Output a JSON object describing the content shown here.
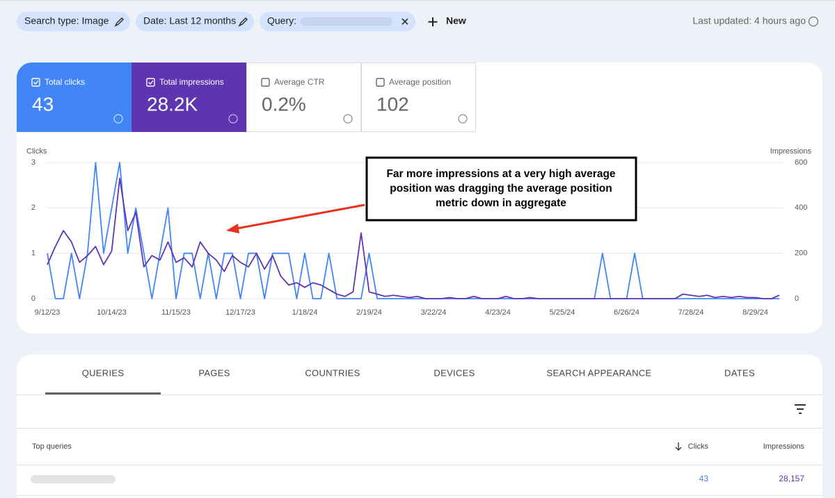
{
  "filters": {
    "chips": [
      "Search type: Image",
      "Date: Last 12 months",
      "Query:"
    ],
    "new_button": "New",
    "last_updated": "Last updated: 4 hours ago"
  },
  "metrics": [
    {
      "label": "Total clicks",
      "value": "43"
    },
    {
      "label": "Total impressions",
      "value": "28.2K"
    },
    {
      "label": "Average CTR",
      "value": "0.2%"
    },
    {
      "label": "Average position",
      "value": "102"
    }
  ],
  "chart_data": {
    "type": "line",
    "annotation": [
      "Far more impressions at a very high average",
      "position was dragging the average position",
      "metric down in aggregate"
    ],
    "x": [
      "9/12/23",
      "9/16/23",
      "9/20/23",
      "9/24/23",
      "9/28/23",
      "10/2/23",
      "10/6/23",
      "10/10/23",
      "10/14/23",
      "10/18/23",
      "10/22/23",
      "10/26/23",
      "10/30/23",
      "11/3/23",
      "11/7/23",
      "11/11/23",
      "11/15/23",
      "11/19/23",
      "11/23/23",
      "11/27/23",
      "12/1/23",
      "12/5/23",
      "12/9/23",
      "12/13/23",
      "12/17/23",
      "12/21/23",
      "12/25/23",
      "12/29/23",
      "1/2/24",
      "1/6/24",
      "1/10/24",
      "1/14/24",
      "1/18/24",
      "1/22/24",
      "1/26/24",
      "1/30/24",
      "2/3/24",
      "2/7/24",
      "2/11/24",
      "2/15/24",
      "2/19/24",
      "2/23/24",
      "2/27/24",
      "3/2/24",
      "3/6/24",
      "3/10/24",
      "3/14/24",
      "3/18/24",
      "3/22/24",
      "3/26/24",
      "3/30/24",
      "4/3/24",
      "4/7/24",
      "4/11/24",
      "4/15/24",
      "4/19/24",
      "4/23/24",
      "4/27/24",
      "5/1/24",
      "5/5/24",
      "5/9/24",
      "5/13/24",
      "5/17/24",
      "5/21/24",
      "5/25/24",
      "5/29/24",
      "6/2/24",
      "6/6/24",
      "6/10/24",
      "6/14/24",
      "6/18/24",
      "6/22/24",
      "6/26/24",
      "6/30/24",
      "7/4/24",
      "7/8/24",
      "7/12/24",
      "7/16/24",
      "7/20/24",
      "7/24/24",
      "7/28/24",
      "8/1/24",
      "8/5/24",
      "8/9/24",
      "8/13/24",
      "8/17/24",
      "8/21/24",
      "8/25/24",
      "8/29/24",
      "9/2/24",
      "9/6/24",
      "9/10/24"
    ],
    "xlim": [
      "9/12/23",
      "9/12/24"
    ],
    "xticks": [
      "9/12/23",
      "10/14/23",
      "11/15/23",
      "12/17/23",
      "1/18/24",
      "2/19/24",
      "3/22/24",
      "4/23/24",
      "5/25/24",
      "6/26/24",
      "7/28/24",
      "8/29/24"
    ],
    "ylim": [
      0,
      3
    ],
    "yticks": [
      0,
      1,
      2,
      3
    ],
    "y2lim": [
      0,
      600
    ],
    "y2ticks": [
      0,
      200,
      400,
      600
    ],
    "grid": true,
    "series": [
      {
        "name": "Clicks",
        "color": "#4285f4",
        "values": [
          1,
          0,
          0,
          1,
          0,
          1,
          3,
          1,
          2,
          3,
          1,
          2,
          1,
          0,
          1,
          2,
          0,
          1,
          1,
          0,
          1,
          0,
          1,
          1,
          0,
          1,
          1,
          0,
          1,
          1,
          1,
          0,
          1,
          0,
          0,
          1,
          0,
          0,
          0,
          0,
          1,
          0,
          0,
          0,
          0,
          0,
          0,
          0,
          0,
          0,
          0,
          0,
          0,
          0,
          0,
          0,
          0,
          0,
          0,
          0,
          0,
          0,
          0,
          0,
          0,
          0,
          0,
          0,
          0,
          1,
          0,
          0,
          0,
          1,
          0,
          0,
          0,
          0,
          0,
          0,
          0,
          0,
          0,
          0,
          0,
          0,
          0,
          0,
          0,
          0,
          0,
          0
        ]
      },
      {
        "name": "Impressions",
        "color": "#5e35b1",
        "axis": "y2",
        "values": [
          150,
          230,
          300,
          250,
          160,
          190,
          230,
          150,
          210,
          530,
          300,
          380,
          140,
          190,
          170,
          250,
          160,
          180,
          140,
          250,
          200,
          170,
          120,
          190,
          160,
          140,
          200,
          130,
          190,
          100,
          60,
          70,
          50,
          70,
          60,
          40,
          20,
          10,
          30,
          290,
          30,
          20,
          10,
          15,
          10,
          5,
          10,
          0,
          0,
          0,
          5,
          0,
          0,
          10,
          0,
          0,
          0,
          10,
          0,
          0,
          5,
          0,
          0,
          0,
          0,
          0,
          0,
          0,
          0,
          0,
          0,
          0,
          0,
          0,
          0,
          0,
          0,
          0,
          0,
          20,
          15,
          10,
          15,
          5,
          10,
          5,
          10,
          5,
          5,
          0,
          0,
          15
        ]
      }
    ]
  },
  "tabs": [
    "QUERIES",
    "PAGES",
    "COUNTRIES",
    "DEVICES",
    "SEARCH APPEARANCE",
    "DATES"
  ],
  "table": {
    "columns": [
      "Top queries",
      "Clicks",
      "Impressions"
    ],
    "rows": [
      {
        "clicks": "43",
        "impressions": "28,157"
      }
    ]
  }
}
